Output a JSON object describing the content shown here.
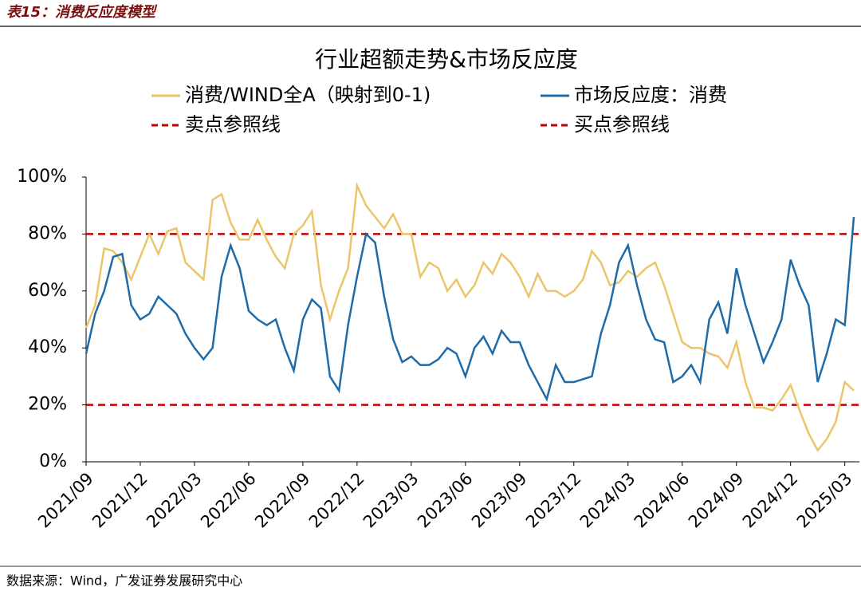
{
  "header": {
    "title": "表15：消费反应度模型"
  },
  "chart_data": {
    "type": "line",
    "title": "行业超额走势&市场反应度",
    "categories": [
      "2021/09",
      null,
      null,
      null,
      null,
      null,
      "2021/12",
      null,
      null,
      null,
      null,
      null,
      "2022/03",
      null,
      null,
      null,
      null,
      null,
      "2022/06",
      null,
      null,
      null,
      null,
      null,
      "2022/09",
      null,
      null,
      null,
      null,
      null,
      "2022/12",
      null,
      null,
      null,
      null,
      null,
      "2023/03",
      null,
      null,
      null,
      null,
      null,
      "2023/06",
      null,
      null,
      null,
      null,
      null,
      "2023/09",
      null,
      null,
      null,
      null,
      null,
      "2023/12",
      null,
      null,
      null,
      null,
      null,
      "2024/03",
      null,
      null,
      null,
      null,
      null,
      "2024/06",
      null,
      null,
      null,
      null,
      null,
      "2024/09",
      null,
      null,
      null,
      null,
      null,
      "2024/12",
      null,
      null,
      null,
      null,
      null,
      "2025/03",
      null
    ],
    "series": [
      {
        "name": "消费/WIND全A（映射到0-1)",
        "color": "#EAC669",
        "values": [
          47,
          55,
          75,
          74,
          70,
          64,
          72,
          80,
          73,
          81,
          82,
          70,
          67,
          64,
          92,
          94,
          84,
          78,
          78,
          85,
          78,
          72,
          68,
          80,
          83,
          88,
          62,
          50,
          60,
          68,
          97,
          90,
          86,
          82,
          87,
          80,
          80,
          65,
          70,
          68,
          60,
          64,
          58,
          62,
          70,
          66,
          73,
          70,
          65,
          58,
          66,
          60,
          60,
          58,
          60,
          64,
          74,
          70,
          62,
          63,
          67,
          65,
          68,
          70,
          62,
          52,
          42,
          40,
          40,
          38,
          37,
          33,
          42,
          28,
          19,
          19,
          18,
          22,
          27,
          18,
          10,
          4,
          8,
          14,
          28,
          25
        ]
      },
      {
        "name": "市场反应度：消费",
        "color": "#1F6BA8",
        "values": [
          38,
          52,
          60,
          72,
          73,
          55,
          50,
          52,
          58,
          55,
          52,
          45,
          40,
          36,
          40,
          65,
          76,
          68,
          53,
          50,
          48,
          50,
          40,
          32,
          50,
          57,
          54,
          30,
          25,
          48,
          65,
          80,
          77,
          58,
          43,
          35,
          37,
          34,
          34,
          36,
          40,
          38,
          30,
          40,
          44,
          38,
          46,
          42,
          42,
          34,
          28,
          22,
          34,
          28,
          28,
          29,
          30,
          45,
          55,
          70,
          76,
          62,
          50,
          43,
          42,
          28,
          30,
          34,
          28,
          50,
          56,
          45,
          68,
          55,
          45,
          35,
          42,
          50,
          71,
          62,
          55,
          28,
          38,
          50,
          48,
          86
        ]
      }
    ],
    "reference_lines": [
      {
        "name": "卖点参照线",
        "value": 80,
        "color": "#C00000"
      },
      {
        "name": "买点参照线",
        "value": 20,
        "color": "#C00000"
      }
    ],
    "ylim": [
      0,
      100
    ],
    "yticks": [
      {
        "value": 0,
        "label": "0%"
      },
      {
        "value": 20,
        "label": "20%"
      },
      {
        "value": 40,
        "label": "40%"
      },
      {
        "value": 60,
        "label": "60%"
      },
      {
        "value": 80,
        "label": "80%"
      },
      {
        "value": 100,
        "label": "100%"
      }
    ]
  },
  "footer": {
    "source": "数据来源：Wind，广发证券发展研究中心"
  }
}
